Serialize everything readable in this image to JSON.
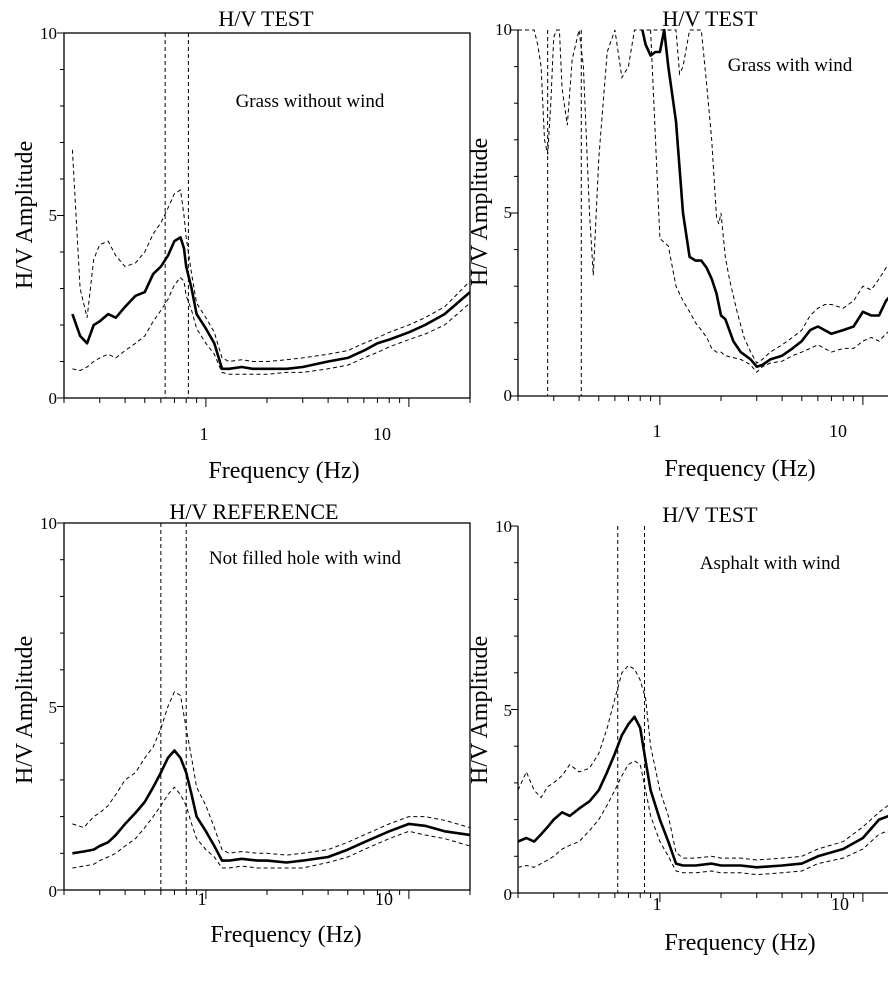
{
  "chart_data": [
    {
      "type": "line",
      "title": "H/V TEST",
      "annotation": "Grass without wind",
      "xlabel": "Frequency (Hz)",
      "ylabel": "H/V Amplitude",
      "xscale": "log",
      "xlim": [
        0.2,
        20
      ],
      "ylim": [
        0,
        10
      ],
      "yticks": [
        "0",
        "5",
        "10"
      ],
      "xticks": [
        "1",
        "10"
      ],
      "vlines": [
        0.63,
        0.82
      ],
      "series": [
        {
          "style": "mean",
          "x": [
            0.22,
            0.24,
            0.26,
            0.28,
            0.3,
            0.33,
            0.36,
            0.4,
            0.45,
            0.5,
            0.55,
            0.6,
            0.65,
            0.7,
            0.75,
            0.78,
            0.8,
            0.85,
            0.9,
            1.0,
            1.1,
            1.2,
            1.3,
            1.5,
            1.7,
            2,
            2.5,
            3,
            4,
            5,
            6,
            7,
            8,
            10,
            12,
            15,
            20
          ],
          "y": [
            2.3,
            1.7,
            1.5,
            2.0,
            2.1,
            2.3,
            2.2,
            2.5,
            2.8,
            2.9,
            3.4,
            3.6,
            3.9,
            4.3,
            4.4,
            4.1,
            3.6,
            3.0,
            2.3,
            1.9,
            1.5,
            0.8,
            0.8,
            0.85,
            0.8,
            0.8,
            0.8,
            0.85,
            1.0,
            1.1,
            1.3,
            1.5,
            1.6,
            1.8,
            2.0,
            2.3,
            2.9
          ]
        },
        {
          "style": "upper",
          "x": [
            0.22,
            0.24,
            0.26,
            0.28,
            0.3,
            0.33,
            0.36,
            0.4,
            0.45,
            0.5,
            0.55,
            0.6,
            0.65,
            0.7,
            0.75,
            0.78,
            0.8,
            0.85,
            0.9,
            1.0,
            1.1,
            1.2,
            1.3,
            1.5,
            1.7,
            2,
            2.5,
            3,
            4,
            5,
            6,
            7,
            8,
            10,
            12,
            15,
            20
          ],
          "y": [
            6.8,
            3.0,
            2.2,
            3.8,
            4.2,
            4.3,
            3.9,
            3.6,
            3.7,
            4.0,
            4.5,
            4.8,
            5.2,
            5.6,
            5.7,
            5.0,
            4.4,
            3.4,
            2.6,
            2.2,
            1.8,
            1.1,
            1.0,
            1.05,
            1.0,
            1.0,
            1.05,
            1.1,
            1.2,
            1.3,
            1.5,
            1.65,
            1.8,
            2.0,
            2.2,
            2.5,
            3.2
          ]
        },
        {
          "style": "lower",
          "x": [
            0.22,
            0.24,
            0.26,
            0.28,
            0.3,
            0.33,
            0.36,
            0.4,
            0.45,
            0.5,
            0.55,
            0.6,
            0.65,
            0.7,
            0.75,
            0.78,
            0.8,
            0.85,
            0.9,
            1.0,
            1.1,
            1.2,
            1.3,
            1.5,
            1.7,
            2,
            2.5,
            3,
            4,
            5,
            6,
            7,
            8,
            10,
            12,
            15,
            20
          ],
          "y": [
            0.8,
            0.75,
            0.85,
            1.0,
            1.1,
            1.2,
            1.1,
            1.3,
            1.5,
            1.7,
            2.1,
            2.4,
            2.7,
            3.1,
            3.3,
            3.2,
            2.8,
            2.4,
            1.9,
            1.5,
            1.2,
            0.7,
            0.65,
            0.65,
            0.65,
            0.65,
            0.7,
            0.7,
            0.8,
            0.9,
            1.1,
            1.25,
            1.4,
            1.6,
            1.75,
            2.0,
            2.6
          ]
        }
      ]
    },
    {
      "type": "line",
      "title": "H/V TEST",
      "annotation": "Grass with wind",
      "xlabel": "Frequency (Hz)",
      "ylabel": "H/V Amplitude",
      "xscale": "log",
      "xlim": [
        0.2,
        20
      ],
      "ylim": [
        0,
        10
      ],
      "yticks": [
        "0",
        "5",
        "10"
      ],
      "xticks": [
        "1",
        "10"
      ],
      "vlines": [
        0.28,
        0.41
      ],
      "series": [
        {
          "style": "mean",
          "x": [
            0.82,
            0.85,
            0.9,
            0.95,
            1.0,
            1.05,
            1.1,
            1.2,
            1.3,
            1.4,
            1.5,
            1.6,
            1.7,
            1.8,
            1.9,
            2.0,
            2.1,
            2.3,
            2.5,
            2.8,
            3.0,
            3.2,
            3.5,
            4,
            4.5,
            5,
            5.5,
            6,
            7,
            8,
            9,
            10,
            11,
            12,
            13,
            15,
            18,
            20
          ],
          "y": [
            10,
            9.6,
            9.3,
            9.4,
            9.4,
            10,
            9.0,
            7.5,
            5.0,
            3.8,
            3.7,
            3.7,
            3.5,
            3.2,
            2.8,
            2.2,
            2.1,
            1.5,
            1.2,
            1.0,
            0.8,
            0.85,
            1.0,
            1.1,
            1.3,
            1.5,
            1.8,
            1.9,
            1.7,
            1.8,
            1.9,
            2.3,
            2.2,
            2.2,
            2.6,
            3.0,
            3.4,
            4.0
          ]
        },
        {
          "style": "upper",
          "x": [
            0.2,
            0.21,
            0.22,
            0.23,
            0.24,
            0.25,
            0.26,
            0.27,
            0.28,
            0.29,
            0.3,
            0.31,
            0.32,
            0.33,
            0.35,
            0.37,
            0.4,
            0.42,
            0.45,
            0.47,
            0.5,
            0.55,
            0.6,
            0.65,
            0.7,
            0.75,
            0.8,
            1.1,
            1.2,
            1.25,
            1.3,
            1.4,
            1.5,
            1.6,
            1.7,
            1.8,
            1.9,
            1.95,
            2.0,
            2.1,
            2.2,
            2.4,
            2.6,
            2.8,
            3.0,
            3.2,
            3.5,
            4,
            4.5,
            5,
            5.5,
            6,
            6.5,
            7,
            8,
            9,
            10,
            11,
            12,
            13,
            15,
            18,
            20
          ],
          "y": [
            10,
            10,
            10,
            10,
            10,
            9.6,
            9.0,
            7.0,
            6.6,
            8.0,
            9.8,
            10,
            10,
            8.4,
            7.4,
            9.2,
            10,
            9.0,
            5.0,
            3.3,
            6.5,
            9.4,
            10,
            8.7,
            9.0,
            10,
            10,
            10,
            10,
            8.8,
            9.0,
            10,
            10,
            10,
            8.5,
            7.0,
            4.9,
            4.7,
            5.0,
            3.8,
            3.2,
            2.3,
            1.6,
            1.2,
            0.9,
            1.0,
            1.2,
            1.4,
            1.6,
            1.8,
            2.2,
            2.4,
            2.5,
            2.5,
            2.4,
            2.6,
            3.0,
            2.9,
            3.2,
            3.5,
            4.0,
            4.3,
            4.4
          ]
        },
        {
          "style": "lower",
          "x": [
            0.9,
            1.0,
            1.1,
            1.2,
            1.3,
            1.4,
            1.5,
            1.6,
            1.7,
            1.8,
            1.9,
            2.0,
            2.1,
            2.3,
            2.5,
            2.8,
            3.0,
            3.2,
            3.5,
            4,
            4.5,
            5,
            5.5,
            6,
            7,
            8,
            9,
            10,
            11,
            12,
            13,
            15,
            18,
            20
          ],
          "y": [
            10,
            4.3,
            4.1,
            3.0,
            2.6,
            2.3,
            2.0,
            1.8,
            1.6,
            1.3,
            1.2,
            1.2,
            1.1,
            1.05,
            1.0,
            0.85,
            0.65,
            0.8,
            0.9,
            0.95,
            1.1,
            1.2,
            1.3,
            1.4,
            1.2,
            1.3,
            1.3,
            1.5,
            1.6,
            1.5,
            1.7,
            2.0,
            2.4,
            3.0
          ]
        }
      ]
    },
    {
      "type": "line",
      "title": "H/V REFERENCE",
      "annotation": "Not filled hole with wind",
      "xlabel": "Frequency (Hz)",
      "ylabel": "H/V Amplitude",
      "xscale": "log",
      "xlim": [
        0.2,
        20
      ],
      "ylim": [
        0,
        10
      ],
      "yticks": [
        "0",
        "5",
        "10"
      ],
      "xticks": [
        "1",
        "10"
      ],
      "vlines": [
        0.6,
        0.8
      ],
      "series": [
        {
          "style": "mean",
          "x": [
            0.22,
            0.25,
            0.28,
            0.3,
            0.33,
            0.36,
            0.4,
            0.45,
            0.5,
            0.55,
            0.6,
            0.65,
            0.7,
            0.75,
            0.8,
            0.85,
            0.9,
            1.0,
            1.1,
            1.2,
            1.3,
            1.5,
            1.8,
            2,
            2.5,
            3,
            4,
            5,
            6,
            8,
            10,
            12,
            15,
            20
          ],
          "y": [
            1.0,
            1.05,
            1.1,
            1.2,
            1.3,
            1.5,
            1.8,
            2.1,
            2.4,
            2.8,
            3.2,
            3.6,
            3.8,
            3.6,
            3.2,
            2.6,
            2.0,
            1.6,
            1.2,
            0.8,
            0.8,
            0.85,
            0.8,
            0.8,
            0.75,
            0.8,
            0.9,
            1.1,
            1.3,
            1.6,
            1.8,
            1.75,
            1.6,
            1.5
          ]
        },
        {
          "style": "upper",
          "x": [
            0.22,
            0.25,
            0.28,
            0.3,
            0.33,
            0.36,
            0.4,
            0.45,
            0.5,
            0.55,
            0.6,
            0.65,
            0.7,
            0.75,
            0.8,
            0.85,
            0.9,
            1.0,
            1.1,
            1.2,
            1.3,
            1.5,
            1.8,
            2,
            2.5,
            3,
            4,
            5,
            6,
            8,
            10,
            12,
            15,
            20
          ],
          "y": [
            1.8,
            1.7,
            2.0,
            2.1,
            2.3,
            2.6,
            3.0,
            3.2,
            3.6,
            3.9,
            4.4,
            5.0,
            5.4,
            5.3,
            4.4,
            3.6,
            2.8,
            2.3,
            1.7,
            1.1,
            1.0,
            1.05,
            1.0,
            1.0,
            0.95,
            1.0,
            1.1,
            1.3,
            1.5,
            1.8,
            2.0,
            2.0,
            1.9,
            1.7
          ]
        },
        {
          "style": "lower",
          "x": [
            0.22,
            0.25,
            0.28,
            0.3,
            0.33,
            0.36,
            0.4,
            0.45,
            0.5,
            0.55,
            0.6,
            0.65,
            0.7,
            0.75,
            0.8,
            0.85,
            0.9,
            1.0,
            1.1,
            1.2,
            1.3,
            1.5,
            1.8,
            2,
            2.5,
            3,
            4,
            5,
            6,
            8,
            10,
            12,
            15,
            20
          ],
          "y": [
            0.6,
            0.65,
            0.7,
            0.8,
            0.9,
            1.0,
            1.2,
            1.4,
            1.7,
            2.0,
            2.3,
            2.6,
            2.8,
            2.6,
            2.3,
            1.8,
            1.4,
            1.1,
            0.9,
            0.6,
            0.6,
            0.65,
            0.6,
            0.6,
            0.6,
            0.6,
            0.75,
            0.9,
            1.1,
            1.4,
            1.6,
            1.5,
            1.4,
            1.2
          ]
        }
      ]
    },
    {
      "type": "line",
      "title": "H/V TEST",
      "annotation": "Asphalt with wind",
      "xlabel": "Frequency (Hz)",
      "ylabel": "H/V Amplitude",
      "xscale": "log",
      "xlim": [
        0.2,
        20
      ],
      "ylim": [
        0,
        10
      ],
      "yticks": [
        "0",
        "5",
        "10"
      ],
      "xticks": [
        "1",
        "10"
      ],
      "vlines": [
        0.62,
        0.84
      ],
      "series": [
        {
          "style": "mean",
          "x": [
            0.2,
            0.22,
            0.24,
            0.26,
            0.28,
            0.3,
            0.33,
            0.36,
            0.4,
            0.45,
            0.5,
            0.55,
            0.6,
            0.65,
            0.7,
            0.75,
            0.8,
            0.85,
            0.9,
            1.0,
            1.1,
            1.2,
            1.3,
            1.5,
            1.8,
            2,
            2.5,
            3,
            4,
            5,
            6,
            8,
            10,
            12,
            15,
            18,
            20
          ],
          "y": [
            1.4,
            1.5,
            1.4,
            1.6,
            1.8,
            2.0,
            2.2,
            2.1,
            2.3,
            2.5,
            2.8,
            3.3,
            3.8,
            4.3,
            4.6,
            4.8,
            4.5,
            3.6,
            2.8,
            2.0,
            1.4,
            0.8,
            0.75,
            0.75,
            0.8,
            0.75,
            0.75,
            0.7,
            0.75,
            0.8,
            1.0,
            1.2,
            1.5,
            2.0,
            2.2,
            2.5,
            2.2
          ]
        },
        {
          "style": "upper",
          "x": [
            0.2,
            0.22,
            0.24,
            0.26,
            0.28,
            0.3,
            0.33,
            0.36,
            0.4,
            0.45,
            0.5,
            0.55,
            0.6,
            0.65,
            0.7,
            0.75,
            0.8,
            0.85,
            0.9,
            1.0,
            1.1,
            1.2,
            1.3,
            1.5,
            1.8,
            2,
            2.5,
            3,
            4,
            5,
            6,
            8,
            10,
            12,
            15,
            18,
            20
          ],
          "y": [
            2.8,
            3.3,
            2.8,
            2.6,
            2.9,
            3.0,
            3.2,
            3.5,
            3.3,
            3.4,
            3.8,
            4.5,
            5.3,
            6.0,
            6.2,
            6.1,
            5.8,
            5.3,
            4.0,
            2.8,
            2.1,
            1.1,
            0.95,
            0.95,
            1.0,
            0.95,
            0.95,
            0.9,
            0.95,
            1.0,
            1.2,
            1.4,
            1.8,
            2.2,
            2.6,
            3.1,
            2.9
          ]
        },
        {
          "style": "lower",
          "x": [
            0.2,
            0.22,
            0.24,
            0.26,
            0.28,
            0.3,
            0.33,
            0.36,
            0.4,
            0.45,
            0.5,
            0.55,
            0.6,
            0.65,
            0.7,
            0.75,
            0.8,
            0.85,
            0.9,
            1.0,
            1.1,
            1.2,
            1.3,
            1.5,
            1.8,
            2,
            2.5,
            3,
            4,
            5,
            6,
            8,
            10,
            12,
            15,
            18,
            20
          ],
          "y": [
            0.7,
            0.75,
            0.7,
            0.8,
            0.9,
            1.0,
            1.2,
            1.3,
            1.4,
            1.7,
            2.0,
            2.4,
            2.8,
            3.2,
            3.5,
            3.6,
            3.5,
            2.8,
            2.1,
            1.4,
            1.0,
            0.6,
            0.55,
            0.55,
            0.6,
            0.55,
            0.55,
            0.5,
            0.55,
            0.6,
            0.8,
            0.95,
            1.2,
            1.6,
            1.8,
            2.0,
            1.9
          ]
        }
      ]
    }
  ]
}
